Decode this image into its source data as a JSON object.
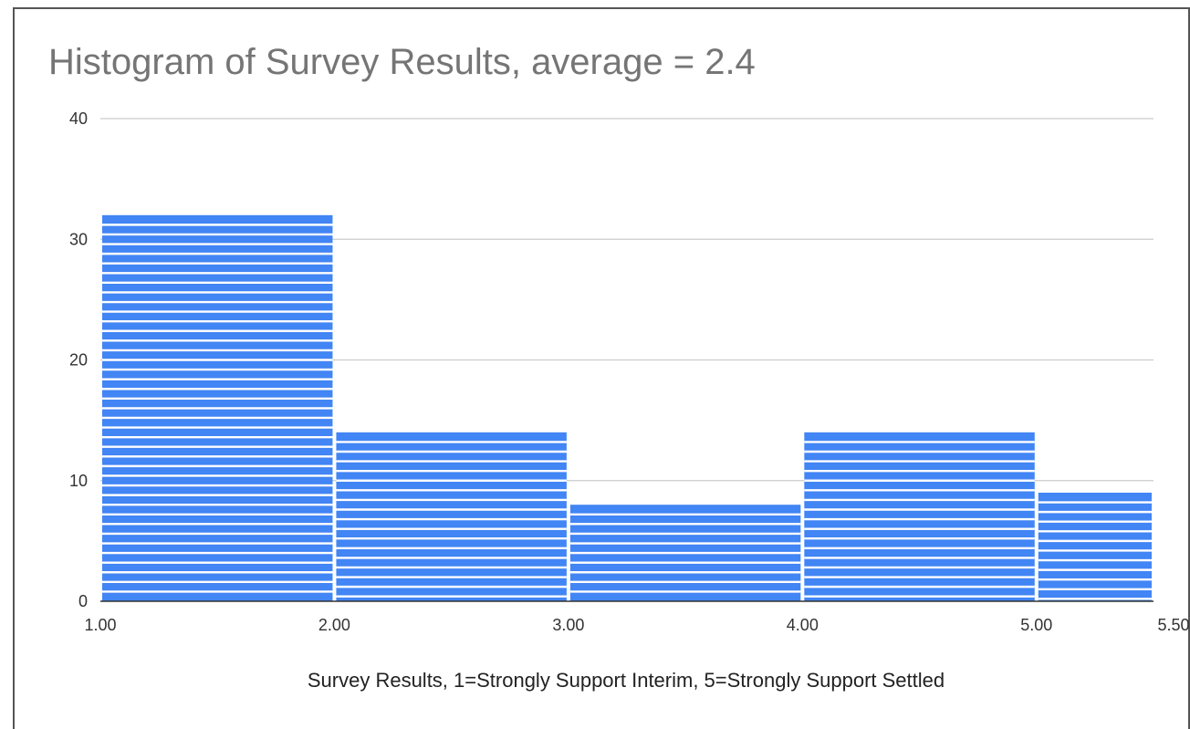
{
  "chart_data": {
    "type": "bar",
    "title": "Histogram of Survey Results, average = 2.4",
    "xlabel": "Survey Results, 1=Strongly Support Interim, 5=Strongly Support Settled",
    "ylabel": "",
    "bins": [
      {
        "start": 1.0,
        "end": 2.0,
        "value": 32
      },
      {
        "start": 2.0,
        "end": 3.0,
        "value": 14
      },
      {
        "start": 3.0,
        "end": 4.0,
        "value": 8
      },
      {
        "start": 4.0,
        "end": 5.0,
        "value": 14
      },
      {
        "start": 5.0,
        "end": 5.5,
        "value": 9
      }
    ],
    "x_ticks": [
      "1.00",
      "2.00",
      "3.00",
      "4.00",
      "5.00",
      "5.50"
    ],
    "x_tick_values": [
      1.0,
      2.0,
      3.0,
      4.0,
      5.0,
      5.5
    ],
    "y_ticks": [
      0,
      10,
      20,
      30,
      40
    ],
    "xlim": [
      1.0,
      5.5
    ],
    "ylim": [
      0,
      40
    ],
    "grid": true,
    "legend": "none",
    "bar_color": "#4285f4"
  }
}
